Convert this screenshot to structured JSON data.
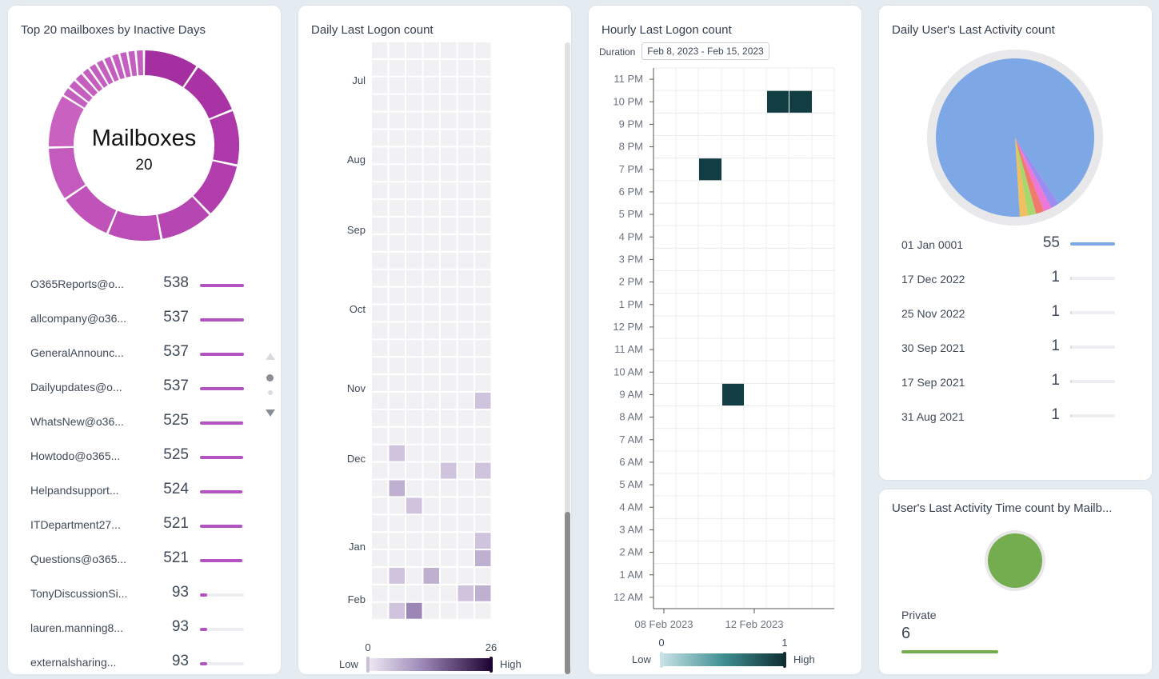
{
  "panel1": {
    "title": "Top 20 mailboxes by Inactive Days",
    "center_label": "Mailboxes",
    "center_value": "20",
    "accent": "#b154bf",
    "items": [
      {
        "label": "O365Reports@o...",
        "value": "538",
        "fraction": 1.0
      },
      {
        "label": "allcompany@o36...",
        "value": "537",
        "fraction": 1.0
      },
      {
        "label": "GeneralAnnounc...",
        "value": "537",
        "fraction": 1.0
      },
      {
        "label": "Dailyupdates@o...",
        "value": "537",
        "fraction": 1.0
      },
      {
        "label": "WhatsNew@o36...",
        "value": "525",
        "fraction": 0.98
      },
      {
        "label": "Howtodo@o365...",
        "value": "525",
        "fraction": 0.98
      },
      {
        "label": "Helpandsupport...",
        "value": "524",
        "fraction": 0.97
      },
      {
        "label": "ITDepartment27...",
        "value": "521",
        "fraction": 0.97
      },
      {
        "label": "Questions@o365...",
        "value": "521",
        "fraction": 0.97
      },
      {
        "label": "TonyDiscussionSi...",
        "value": "93",
        "fraction": 0.17
      },
      {
        "label": "lauren.manning8...",
        "value": "93",
        "fraction": 0.17
      },
      {
        "label": "externalsharing...",
        "value": "93",
        "fraction": 0.17
      }
    ]
  },
  "panel2": {
    "title": "Daily Last Logon count",
    "months": [
      "Jul",
      "Aug",
      "Sep",
      "Oct",
      "Nov",
      "Dec",
      "Jan",
      "Feb"
    ],
    "legend_min": "0",
    "legend_max": "26",
    "legend_low": "Low",
    "legend_high": "High"
  },
  "panel3": {
    "title": "Hourly Last Logon count",
    "duration_label": "Duration",
    "duration_value": "Feb 8, 2023 - Feb 15, 2023",
    "hours": [
      "11 PM",
      "10 PM",
      "9 PM",
      "8 PM",
      "7 PM",
      "6 PM",
      "5 PM",
      "4 PM",
      "3 PM",
      "2 PM",
      "1 PM",
      "12 PM",
      "11 AM",
      "10 AM",
      "9 AM",
      "8 AM",
      "7 AM",
      "6 AM",
      "5 AM",
      "4 AM",
      "3 AM",
      "2 AM",
      "1 AM",
      "12 AM"
    ],
    "x_labels": [
      "08 Feb 2023",
      "12 Feb 2023"
    ],
    "legend_min": "0",
    "legend_max": "1",
    "legend_low": "Low",
    "legend_high": "High",
    "cell_color": "#123d42",
    "cells": [
      {
        "day": "13 Feb 2023",
        "hour": "10 PM",
        "count": 1
      },
      {
        "day": "14 Feb 2023",
        "hour": "10 PM",
        "count": 1
      },
      {
        "day": "10 Feb 2023",
        "hour": "7 PM",
        "count": 1
      },
      {
        "day": "11 Feb 2023",
        "hour": "9 AM",
        "count": 1
      }
    ]
  },
  "panel4": {
    "title": "Daily User's Last Activity count",
    "items": [
      {
        "label": "01 Jan 0001",
        "value": "55",
        "fraction": 1.0,
        "color": "#7ea7e6"
      },
      {
        "label": "17 Dec 2022",
        "value": "1",
        "fraction": 0.018,
        "color": "#f0c060"
      },
      {
        "label": "25 Nov 2022",
        "value": "1",
        "fraction": 0.018,
        "color": "#a6d86e"
      },
      {
        "label": "30 Sep 2021",
        "value": "1",
        "fraction": 0.018,
        "color": "#f07a6e"
      },
      {
        "label": "17 Sep 2021",
        "value": "1",
        "fraction": 0.018,
        "color": "#ee78d8"
      },
      {
        "label": "31 Aug 2021",
        "value": "1",
        "fraction": 0.018,
        "color": "#9a8cf0"
      }
    ]
  },
  "panel5": {
    "title": "User's Last Activity Time count by Mailb...",
    "item_label": "Private",
    "item_value": "6",
    "color": "#74ad4f"
  }
}
